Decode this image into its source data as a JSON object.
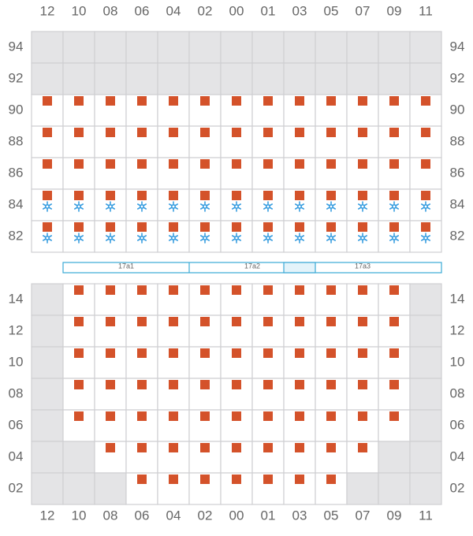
{
  "columns": [
    "12",
    "10",
    "08",
    "06",
    "04",
    "02",
    "00",
    "01",
    "03",
    "05",
    "07",
    "09",
    "11"
  ],
  "top_rows": [
    "94",
    "92",
    "90",
    "88",
    "86",
    "84",
    "82"
  ],
  "bottom_rows": [
    "14",
    "12",
    "10",
    "08",
    "06",
    "04",
    "02"
  ],
  "zones": [
    "17a1",
    "17a2",
    "17a3"
  ]
}
